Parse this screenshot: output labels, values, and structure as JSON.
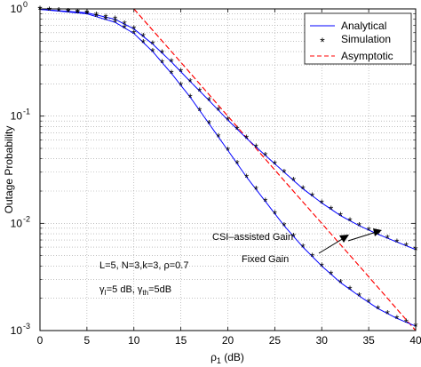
{
  "chart_data": {
    "type": "line",
    "xlabel": "ρ",
    "xlabel_sub": "1",
    "xlabel_unit": " (dB)",
    "ylabel": "Outage Probability",
    "xlim": [
      0,
      40
    ],
    "ylim": [
      0.001,
      1
    ],
    "yscale": "log",
    "grid": true,
    "legend_position": "top-right",
    "x_ticks": [
      0,
      5,
      10,
      15,
      20,
      25,
      30,
      35,
      40
    ],
    "y_ticks": [
      {
        "value": 1,
        "base": "10",
        "exp": "0"
      },
      {
        "value": 0.1,
        "base": "10",
        "exp": "-1"
      },
      {
        "value": 0.01,
        "base": "10",
        "exp": "-2"
      },
      {
        "value": 0.001,
        "base": "10",
        "exp": "-3"
      }
    ],
    "legend": [
      {
        "label": "Analytical",
        "style": "solid-line",
        "color": "#0000ff"
      },
      {
        "label": "Simulation",
        "style": "star-marker",
        "color": "#000000"
      },
      {
        "label": "Asymptotic",
        "style": "dashed-line",
        "color": "#ff0000"
      }
    ],
    "series": [
      {
        "name": "CSI-assisted Gain",
        "x": [
          0,
          5,
          8,
          10,
          12,
          14,
          16,
          18,
          20,
          22,
          24,
          26,
          28,
          30,
          32,
          34,
          36,
          38,
          40
        ],
        "y": [
          0.99,
          0.92,
          0.8,
          0.65,
          0.47,
          0.32,
          0.21,
          0.14,
          0.092,
          0.062,
          0.043,
          0.03,
          0.021,
          0.0155,
          0.0118,
          0.0095,
          0.0079,
          0.0067,
          0.0057
        ]
      },
      {
        "name": "Fixed Gain",
        "x": [
          0,
          5,
          8,
          10,
          12,
          14,
          16,
          18,
          20,
          22,
          24,
          26,
          28,
          30,
          32,
          34,
          36,
          38,
          40
        ],
        "y": [
          0.99,
          0.9,
          0.75,
          0.59,
          0.4,
          0.25,
          0.15,
          0.085,
          0.048,
          0.027,
          0.016,
          0.0095,
          0.006,
          0.004,
          0.0028,
          0.0021,
          0.0016,
          0.0013,
          0.0011
        ]
      }
    ],
    "asymptotic": [
      {
        "x": [
          10,
          14,
          20,
          26,
          30,
          34,
          40
        ],
        "y": [
          1.0,
          0.4,
          0.1,
          0.025,
          0.01,
          0.004,
          0.001
        ]
      },
      {
        "x": [
          10,
          14,
          20,
          26,
          30,
          34,
          40
        ],
        "y": [
          1.0,
          0.4,
          0.1,
          0.025,
          0.01,
          0.004,
          0.001
        ]
      }
    ],
    "annotations": {
      "csi_label": "CSI–assisted Gain",
      "fixed_label": "Fixed Gain",
      "params_line1": "L=5, N=3,k=3, ρ=0.7",
      "params_line2_a": "γ",
      "params_line2_a_sub": "I",
      "params_line2_b": "=5 dB, γ",
      "params_line2_b_sub": "th",
      "params_line2_c": "=5dB"
    },
    "colors": {
      "analytical": "#0000ff",
      "simulation": "#000000",
      "asymptotic": "#ff0000",
      "grid": "#9a9a9a"
    }
  }
}
